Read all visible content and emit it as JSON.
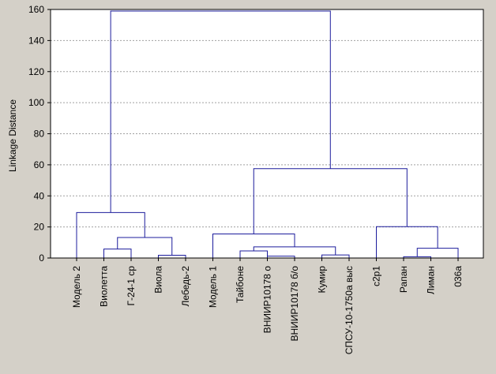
{
  "chart_data": {
    "type": "dendrogram",
    "ylabel": "Linkage Distance",
    "ylim": [
      0,
      160
    ],
    "y_ticks": [
      "0",
      "20",
      "40",
      "60",
      "80",
      "100",
      "120",
      "140",
      "160"
    ],
    "grid": true,
    "leaves": [
      "Модель 2",
      "Виолетта",
      "Г-24-1 ср",
      "Виола",
      "Лебедь-2",
      "Модель 1",
      "Тайбоне",
      "ВНИИР10178 о",
      "ВНИИР10178 б/о",
      "Кумир",
      "СПСУ-10-1750а выс",
      "с2р1",
      "Рапан",
      "Лиман",
      "036а"
    ],
    "merges": [
      {
        "left": "L1",
        "right": "L2",
        "height": 5.8,
        "id": "a"
      },
      {
        "left": "L3",
        "right": "L4",
        "height": 1.8,
        "id": "b"
      },
      {
        "left": "a",
        "right": "b",
        "height": 13.2,
        "id": "c"
      },
      {
        "left": "L0",
        "right": "c",
        "height": 29.3,
        "id": "d"
      },
      {
        "left": "L6",
        "right": "L7",
        "height": 4.6,
        "id": "e"
      },
      {
        "left": "L7",
        "right": "L8",
        "height": 1.2,
        "id": "f"
      },
      {
        "left": "L9",
        "right": "L10",
        "height": 2.0,
        "id": "g"
      },
      {
        "left": "e",
        "right": "g",
        "height": 7.2,
        "id": "h"
      },
      {
        "left": "L5",
        "right": "h",
        "height": 15.5,
        "id": "i"
      },
      {
        "left": "L12",
        "right": "L13",
        "height": 0.8,
        "id": "j"
      },
      {
        "left": "j",
        "right": "L14",
        "height": 6.3,
        "id": "k"
      },
      {
        "left": "L11",
        "right": "k",
        "height": 20.2,
        "id": "l"
      },
      {
        "left": "i",
        "right": "l",
        "height": 57.5,
        "id": "m"
      },
      {
        "left": "d",
        "right": "m",
        "height": 159.0,
        "id": "n"
      }
    ],
    "colors": {
      "background": "#d4d0c8",
      "plot_background": "#ffffff",
      "link": "#1c1c9c",
      "grid": "#a0a0a0",
      "frame": "#000000"
    }
  }
}
